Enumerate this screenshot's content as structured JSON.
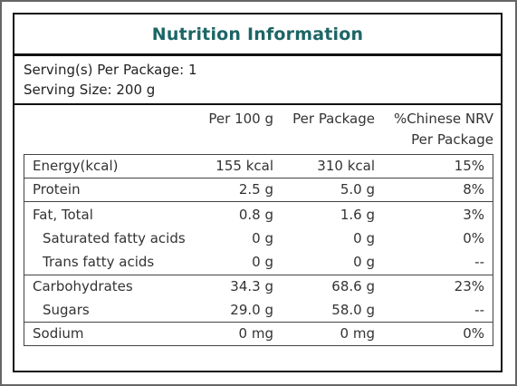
{
  "title": "Nutrition Information",
  "serving": {
    "per_package": "Serving(s) Per Package: 1",
    "size": "Serving Size: 200 g"
  },
  "columns": {
    "per_100g": "Per 100 g",
    "per_package": "Per Package",
    "nrv_line1": "%Chinese NRV",
    "nrv_line2": "Per Package"
  },
  "rows": [
    {
      "name": "Energy(kcal)",
      "per_100g": "155 kcal",
      "per_package": "310 kcal",
      "nrv": "15%"
    },
    {
      "name": "Protein",
      "per_100g": "2.5 g",
      "per_package": "5.0 g",
      "nrv": "8%"
    },
    {
      "name": "Fat, Total",
      "per_100g": "0.8 g",
      "per_package": "1.6 g",
      "nrv": "3%"
    },
    {
      "name": "Saturated fatty acids",
      "per_100g": "0 g",
      "per_package": "0 g",
      "nrv": "0%"
    },
    {
      "name": "Trans fatty acids",
      "per_100g": "0 g",
      "per_package": "0 g",
      "nrv": "--"
    },
    {
      "name": "Carbohydrates",
      "per_100g": "34.3 g",
      "per_package": "68.6 g",
      "nrv": "23%"
    },
    {
      "name": "Sugars",
      "per_100g": "29.0 g",
      "per_package": "58.0 g",
      "nrv": "--"
    },
    {
      "name": "Sodium",
      "per_100g": "0 mg",
      "per_package": "0 mg",
      "nrv": "0%"
    }
  ],
  "colors": {
    "title_text": "#1d6565",
    "border": "#111111",
    "body_text": "#333333"
  }
}
